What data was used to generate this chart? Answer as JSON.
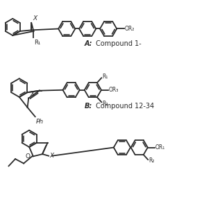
{
  "background_color": "#ffffff",
  "line_color": "#2a2a2a",
  "line_width": 1.3,
  "font_size": 6.5,
  "label_A_bold": "A:",
  "label_A_rest": " Compound 1-",
  "label_B_bold": "B:",
  "label_B_rest": " Compound 12-34"
}
